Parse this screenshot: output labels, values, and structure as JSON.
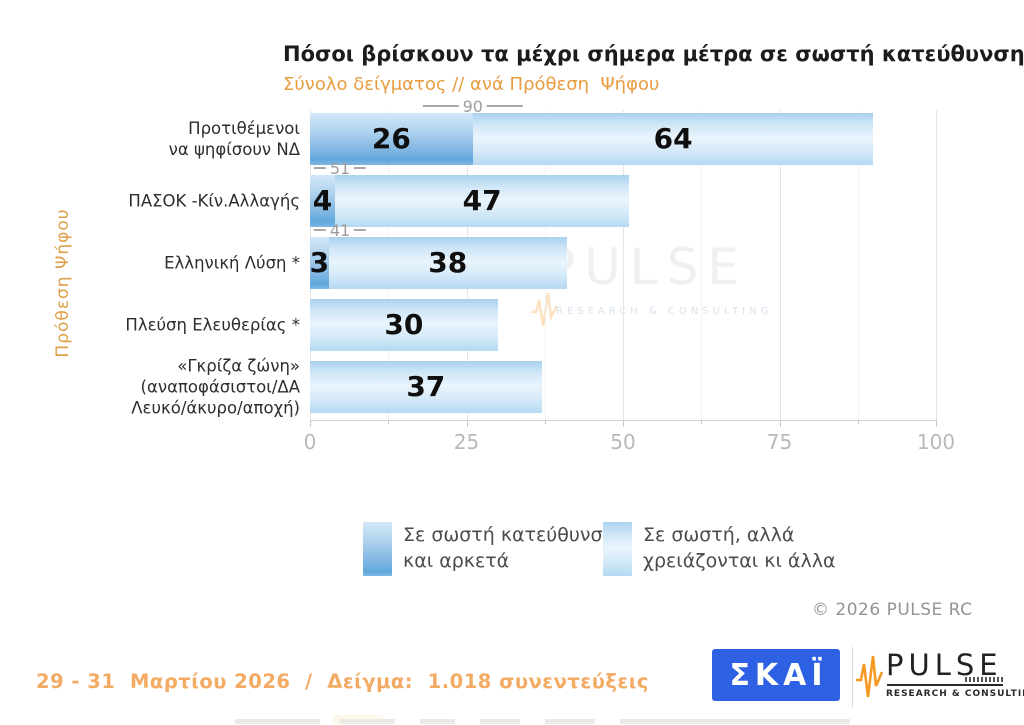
{
  "title": "Πόσοι βρίσκουν τα μέχρι σήμερα μέτρα σε σωστή κατεύθυνση",
  "subtitle": "Σύνολο δείγματος // ανά Πρόθεση  Ψήφου",
  "y_axis_label": "Πρόθεση Ψήφου",
  "chart_data": {
    "type": "bar",
    "orientation": "horizontal",
    "stacked": true,
    "xlim": [
      0,
      100
    ],
    "x_ticks": [
      0,
      25,
      50,
      75,
      100
    ],
    "minor_tick_step": 12.5,
    "grid": true,
    "categories": [
      "Προτιθέμενοι να ψηφίσουν ΝΔ",
      "ΠΑΣΟΚ -Κίν.Αλλαγής",
      "Ελληνική Λύση *",
      "Πλεύση Ελευθερίας *",
      "«Γκρίζα ζώνη» (αναποφάσιστοι/ΔΑ Λευκό/άκυρο/αποχή)"
    ],
    "category_lines": [
      [
        "Προτιθέμενοι",
        "να ψηφίσουν ΝΔ"
      ],
      [
        "ΠΑΣΟΚ -Κίν.Αλλαγής"
      ],
      [
        "Ελληνική Λύση *"
      ],
      [
        "Πλεύση Ελευθερίας *"
      ],
      [
        "«Γκρίζα ζώνη»",
        "(αναποφάσιστοι/ΔΑ",
        "Λευκό/άκυρο/αποχή)"
      ]
    ],
    "series": [
      {
        "name": "Σε σωστή κατεύθυνση και αρκετά",
        "values": [
          26,
          4,
          3,
          0,
          0
        ]
      },
      {
        "name": "Σε σωστή, αλλά χρειάζονται κι άλλα",
        "values": [
          64,
          47,
          38,
          30,
          37
        ]
      }
    ],
    "totals": [
      90,
      51,
      41,
      null,
      null
    ]
  },
  "legend": {
    "items": [
      {
        "lines": [
          "Σε σωστή κατεύθυνση",
          "και αρκετά"
        ],
        "swatch": "dark"
      },
      {
        "lines": [
          "Σε σωστή, αλλά",
          "χρειάζονται κι άλλα"
        ],
        "swatch": "light"
      }
    ]
  },
  "watermark": {
    "text": "PULSE",
    "sub": "RESEARCH & CONSULTING"
  },
  "copyright": "© 2026  PULSE RC",
  "footer_note": "29 - 31  Μαρτίου 2026  /  Δείγμα:  1.018 συνεντεύξεις",
  "logos": {
    "skai": "ΣΚΑΪ",
    "pulse": "PULSE",
    "pulse_sub": "RESEARCH & CONSULTING"
  },
  "colors": {
    "bar_dark": "#61a8dd",
    "bar_light": "#cfe6f7",
    "accent_orange": "#e89c3f",
    "footer_orange": "#f3aa62",
    "skai_blue": "#2d60e2",
    "pulse_orange": "#f59a23",
    "axis_gray": "#b9b9b9"
  }
}
